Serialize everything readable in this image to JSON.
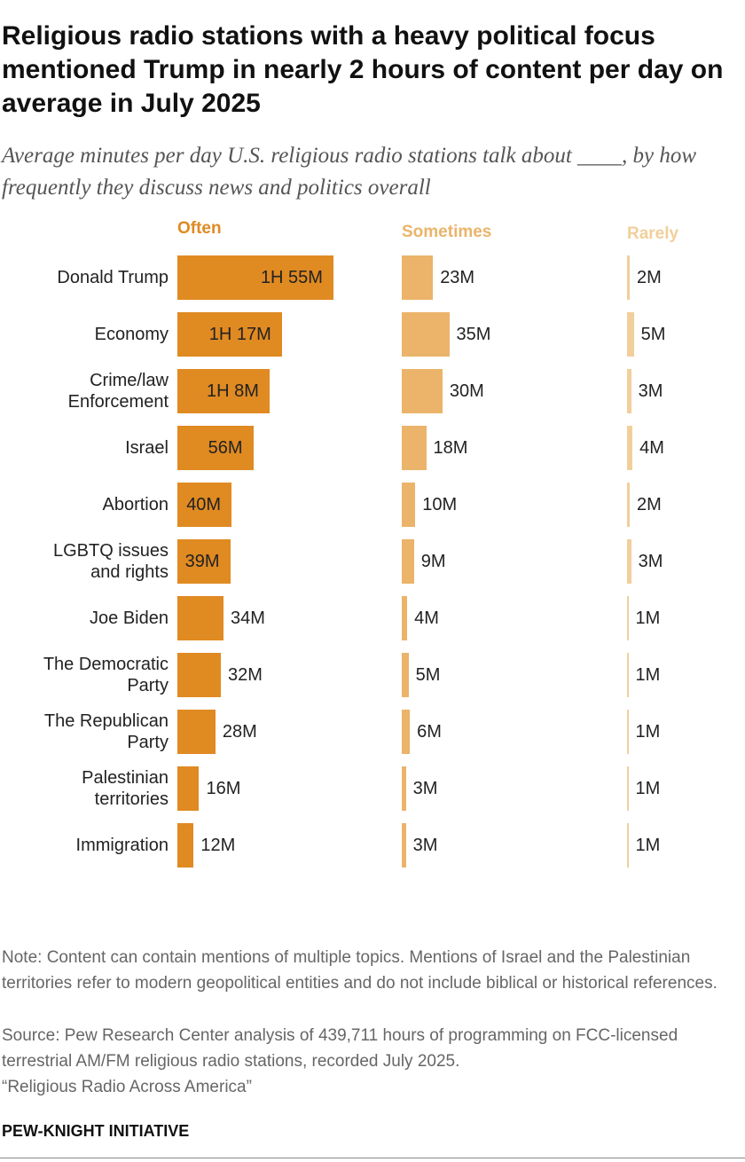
{
  "chart_data": {
    "type": "bar",
    "title": "Religious radio stations with a heavy political focus mentioned Trump in nearly 2 hours of content per day on average in July 2025",
    "subtitle": "Average minutes per day U.S. religious radio stations talk about ____, by how frequently they discuss news and politics overall",
    "categories": [
      "Donald Trump",
      "Economy",
      "Crime/law\nEnforcement",
      "Israel",
      "Abortion",
      "LGBTQ issues\nand rights",
      "Joe Biden",
      "The Democratic\nParty",
      "The Republican\nParty",
      "Palestinian\nterritories",
      "Immigration"
    ],
    "series": [
      {
        "name": "Often",
        "color": "#e08a22",
        "values": [
          115,
          77,
          68,
          56,
          40,
          39,
          34,
          32,
          28,
          16,
          12
        ],
        "value_labels": [
          "1H 55M",
          "1H 17M",
          "1H 8M",
          "56M",
          "40M",
          "39M",
          "34M",
          "32M",
          "28M",
          "16M",
          "12M"
        ]
      },
      {
        "name": "Sometimes",
        "color": "#ebb46a",
        "values": [
          23,
          35,
          30,
          18,
          10,
          9,
          4,
          5,
          6,
          3,
          3
        ],
        "value_labels": [
          "23M",
          "35M",
          "30M",
          "18M",
          "10M",
          "9M",
          "4M",
          "5M",
          "6M",
          "3M",
          "3M"
        ]
      },
      {
        "name": "Rarely",
        "color": "#f2cf9a",
        "values": [
          2,
          5,
          3,
          4,
          2,
          3,
          1,
          1,
          1,
          1,
          1
        ],
        "value_labels": [
          "2M",
          "5M",
          "3M",
          "4M",
          "2M",
          "3M",
          "1M",
          "1M",
          "1M",
          "1M",
          "1M"
        ]
      }
    ]
  },
  "note": "Note: Content can contain mentions of multiple topics. Mentions of Israel and the Palestinian territories refer to modern geopolitical entities and do not include biblical or historical references.",
  "source": "Source: Pew Research Center analysis of 439,711 hours of programming on FCC-licensed terrestrial AM/FM religious radio stations, recorded July 2025.",
  "report": "“Religious Radio Across America”",
  "credit": "PEW-KNIGHT INITIATIVE"
}
